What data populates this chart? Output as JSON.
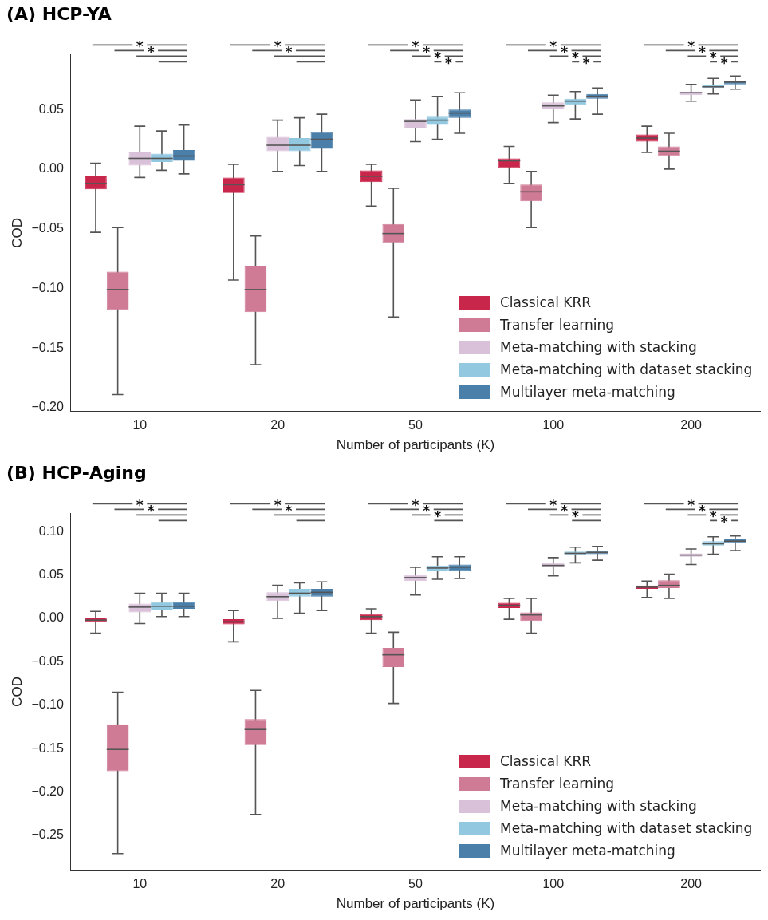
{
  "chart_data": [
    {
      "type": "box",
      "title": "(A) HCP-YA",
      "xlabel": "Number of participants (K)",
      "ylabel": "COD",
      "categories": [
        "10",
        "20",
        "50",
        "100",
        "200"
      ],
      "ylim": [
        -0.203,
        0.096
      ],
      "yticks": [
        {
          "value": -0.2,
          "label": "−0.20"
        },
        {
          "value": -0.15,
          "label": "−0.15"
        },
        {
          "value": -0.1,
          "label": "−0.10"
        },
        {
          "value": -0.05,
          "label": "−0.05"
        },
        {
          "value": 0,
          "label": "0.00"
        },
        {
          "value": 0.05,
          "label": "0.05"
        }
      ],
      "grid": false,
      "legend": "bottom right",
      "series": [
        {
          "name": "Classical KRR",
          "color": "#c9264c",
          "boxes": [
            {
              "low": -0.053,
              "q1": -0.017,
              "median": -0.012,
              "q3": -0.006,
              "high": 0.005
            },
            {
              "low": -0.093,
              "q1": -0.02,
              "median": -0.013,
              "q3": -0.007,
              "high": 0.004
            },
            {
              "low": -0.031,
              "q1": -0.011,
              "median": -0.006,
              "q3": -0.001,
              "high": 0.004
            },
            {
              "low": -0.012,
              "q1": 0.001,
              "median": 0.007,
              "q3": 0.009,
              "high": 0.019
            },
            {
              "low": 0.014,
              "q1": 0.023,
              "median": 0.026,
              "q3": 0.029,
              "high": 0.036
            }
          ]
        },
        {
          "name": "Transfer learning",
          "color": "#cf7b96",
          "boxes": [
            {
              "low": -0.189,
              "q1": -0.118,
              "median": -0.101,
              "q3": -0.086,
              "high": -0.049
            },
            {
              "low": -0.164,
              "q1": -0.12,
              "median": -0.101,
              "q3": -0.081,
              "high": -0.056
            },
            {
              "low": -0.124,
              "q1": -0.062,
              "median": -0.054,
              "q3": -0.046,
              "high": -0.016
            },
            {
              "low": -0.049,
              "q1": -0.027,
              "median": -0.019,
              "q3": -0.013,
              "high": -0.002
            },
            {
              "low": 0,
              "q1": 0.011,
              "median": 0.015,
              "q3": 0.019,
              "high": 0.03
            }
          ]
        },
        {
          "name": "Meta-matching with stacking",
          "color": "#d9c2d9",
          "boxes": [
            {
              "low": -0.007,
              "q1": 0.003,
              "median": 0.009,
              "q3": 0.014,
              "high": 0.036
            },
            {
              "low": -0.002,
              "q1": 0.015,
              "median": 0.02,
              "q3": 0.027,
              "high": 0.041
            },
            {
              "low": 0.023,
              "q1": 0.034,
              "median": 0.04,
              "q3": 0.042,
              "high": 0.058
            },
            {
              "low": 0.039,
              "q1": 0.05,
              "median": 0.053,
              "q3": 0.056,
              "high": 0.062
            },
            {
              "low": 0.057,
              "q1": 0.062,
              "median": 0.064,
              "q3": 0.065,
              "high": 0.071
            }
          ]
        },
        {
          "name": "Meta-matching with dataset stacking",
          "color": "#92c8e0",
          "boxes": [
            {
              "low": -0.001,
              "q1": 0.006,
              "median": 0.009,
              "q3": 0.013,
              "high": 0.032
            },
            {
              "low": 0.003,
              "q1": 0.015,
              "median": 0.02,
              "q3": 0.026,
              "high": 0.043
            },
            {
              "low": 0.025,
              "q1": 0.037,
              "median": 0.041,
              "q3": 0.044,
              "high": 0.061
            },
            {
              "low": 0.042,
              "q1": 0.054,
              "median": 0.057,
              "q3": 0.059,
              "high": 0.065
            },
            {
              "low": 0.063,
              "q1": 0.068,
              "median": 0.069,
              "q3": 0.071,
              "high": 0.076
            }
          ]
        },
        {
          "name": "Multilayer meta-matching",
          "color": "#4a7faa",
          "boxes": [
            {
              "low": -0.004,
              "q1": 0.007,
              "median": 0.011,
              "q3": 0.016,
              "high": 0.037
            },
            {
              "low": -0.002,
              "q1": 0.017,
              "median": 0.025,
              "q3": 0.031,
              "high": 0.046
            },
            {
              "low": 0.03,
              "q1": 0.043,
              "median": 0.047,
              "q3": 0.05,
              "high": 0.064
            },
            {
              "low": 0.046,
              "q1": 0.059,
              "median": 0.061,
              "q3": 0.063,
              "high": 0.068
            },
            {
              "low": 0.067,
              "q1": 0.071,
              "median": 0.073,
              "q3": 0.074,
              "high": 0.078
            }
          ]
        }
      ],
      "annotations": [
        "*",
        "*",
        "*",
        "*",
        "*",
        "*",
        "*",
        "*",
        "*",
        "*",
        "*",
        "*",
        "*",
        "*",
        "*",
        "*"
      ]
    },
    {
      "type": "box",
      "title": "(B) HCP-Aging",
      "xlabel": "Number of participants (K)",
      "ylabel": "COD",
      "categories": [
        "10",
        "20",
        "50",
        "100",
        "200"
      ],
      "ylim": [
        -0.29,
        0.121
      ],
      "yticks": [
        {
          "value": -0.25,
          "label": "−0.25"
        },
        {
          "value": -0.2,
          "label": "−0.20"
        },
        {
          "value": -0.15,
          "label": "−0.15"
        },
        {
          "value": -0.1,
          "label": "−0.10"
        },
        {
          "value": -0.05,
          "label": "−0.05"
        },
        {
          "value": 0,
          "label": "0.00"
        },
        {
          "value": 0.05,
          "label": "0.05"
        },
        {
          "value": 0.1,
          "label": "0.10"
        }
      ],
      "grid": false,
      "legend": "bottom right",
      "series": [
        {
          "name": "Classical KRR",
          "color": "#c9264c",
          "boxes": [
            {
              "low": -0.017,
              "q1": -0.004,
              "median": -0.002,
              "q3": 0.001,
              "high": 0.008
            },
            {
              "low": -0.027,
              "q1": -0.007,
              "median": -0.004,
              "q3": -0.001,
              "high": 0.009
            },
            {
              "low": -0.017,
              "q1": -0.002,
              "median": 0.002,
              "q3": 0.005,
              "high": 0.011
            },
            {
              "low": -0.001,
              "q1": 0.012,
              "median": 0.015,
              "q3": 0.018,
              "high": 0.023
            },
            {
              "low": 0.024,
              "q1": 0.034,
              "median": 0.036,
              "q3": 0.038,
              "high": 0.043
            }
          ]
        },
        {
          "name": "Transfer learning",
          "color": "#cf7b96",
          "boxes": [
            {
              "low": -0.271,
              "q1": -0.176,
              "median": -0.151,
              "q3": -0.122,
              "high": -0.085
            },
            {
              "low": -0.226,
              "q1": -0.146,
              "median": -0.128,
              "q3": -0.116,
              "high": -0.083
            },
            {
              "low": -0.098,
              "q1": -0.056,
              "median": -0.042,
              "q3": -0.034,
              "high": -0.016
            },
            {
              "low": -0.017,
              "q1": -0.003,
              "median": 0.004,
              "q3": 0.007,
              "high": 0.023
            },
            {
              "low": 0.023,
              "q1": 0.035,
              "median": 0.038,
              "q3": 0.044,
              "high": 0.051
            }
          ]
        },
        {
          "name": "Meta-matching with stacking",
          "color": "#d9c2d9",
          "boxes": [
            {
              "low": -0.006,
              "q1": 0.007,
              "median": 0.013,
              "q3": 0.017,
              "high": 0.029
            },
            {
              "low": 0,
              "q1": 0.02,
              "median": 0.025,
              "q3": 0.03,
              "high": 0.038
            },
            {
              "low": 0.027,
              "q1": 0.043,
              "median": 0.047,
              "q3": 0.05,
              "high": 0.059
            },
            {
              "low": 0.049,
              "q1": 0.059,
              "median": 0.061,
              "q3": 0.064,
              "high": 0.07
            },
            {
              "low": 0.062,
              "q1": 0.071,
              "median": 0.073,
              "q3": 0.075,
              "high": 0.08
            }
          ]
        },
        {
          "name": "Meta-matching with dataset stacking",
          "color": "#92c8e0",
          "boxes": [
            {
              "low": 0.002,
              "q1": 0.01,
              "median": 0.014,
              "q3": 0.019,
              "high": 0.029
            },
            {
              "low": 0.006,
              "q1": 0.025,
              "median": 0.029,
              "q3": 0.034,
              "high": 0.041
            },
            {
              "low": 0.045,
              "q1": 0.054,
              "median": 0.058,
              "q3": 0.061,
              "high": 0.071
            },
            {
              "low": 0.064,
              "q1": 0.073,
              "median": 0.075,
              "q3": 0.077,
              "high": 0.082
            },
            {
              "low": 0.074,
              "q1": 0.084,
              "median": 0.086,
              "q3": 0.089,
              "high": 0.094
            }
          ]
        },
        {
          "name": "Multilayer meta-matching",
          "color": "#4a7faa",
          "boxes": [
            {
              "low": 0.002,
              "q1": 0.011,
              "median": 0.014,
              "q3": 0.019,
              "high": 0.029
            },
            {
              "low": 0.009,
              "q1": 0.025,
              "median": 0.03,
              "q3": 0.034,
              "high": 0.042
            },
            {
              "low": 0.046,
              "q1": 0.055,
              "median": 0.059,
              "q3": 0.062,
              "high": 0.071
            },
            {
              "low": 0.067,
              "q1": 0.074,
              "median": 0.076,
              "q3": 0.078,
              "high": 0.083
            },
            {
              "low": 0.078,
              "q1": 0.087,
              "median": 0.089,
              "q3": 0.091,
              "high": 0.095
            }
          ]
        }
      ],
      "annotations": [
        "*",
        "*",
        "*",
        "*",
        "*",
        "*",
        "*",
        "*",
        "*",
        "*",
        "*",
        "*",
        "*",
        "*"
      ]
    }
  ]
}
